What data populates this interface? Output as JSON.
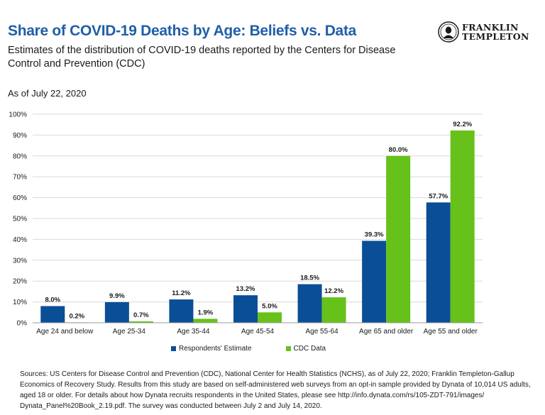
{
  "header": {
    "title": "Share of COVID-19 Deaths by Age: Beliefs vs. Data",
    "subtitle": "Estimates of the distribution of COVID-19 deaths reported by the Centers for Disease Control and Prevention (CDC)",
    "as_of": "As of July 22, 2020",
    "logo_line1": "FRANKLIN",
    "logo_line2": "TEMPLETON"
  },
  "colors": {
    "title": "#1f5fa8",
    "respondents": "#0a4e96",
    "cdc": "#66c21a",
    "grid": "#d9d9d9"
  },
  "chart_data": {
    "type": "bar",
    "categories": [
      "Age 24 and below",
      "Age 25-34",
      "Age 35-44",
      "Age 45-54",
      "Age 55-64",
      "Age 65 and older",
      "Age 55 and older"
    ],
    "series": [
      {
        "name": "Respondents' Estimate",
        "values": [
          8.0,
          9.9,
          11.2,
          13.2,
          18.5,
          39.3,
          57.7
        ],
        "labels": [
          "8.0%",
          "9.9%",
          "11.2%",
          "13.2%",
          "18.5%",
          "39.3%",
          "57.7%"
        ]
      },
      {
        "name": "CDC Data",
        "values": [
          0.2,
          0.7,
          1.9,
          5.0,
          12.2,
          80.0,
          92.2
        ],
        "labels": [
          "0.2%",
          "0.7%",
          "1.9%",
          "5.0%",
          "12.2%",
          "80.0%",
          "92.2%"
        ]
      }
    ],
    "ylim": [
      0,
      100
    ],
    "yticks": [
      "0%",
      "10%",
      "20%",
      "30%",
      "40%",
      "50%",
      "60%",
      "70%",
      "80%",
      "90%",
      "100%"
    ],
    "grid": true,
    "legend": "bottom"
  },
  "footer": {
    "sources": "Sources: US Centers for Disease Control and Prevention (CDC), National Center for Health Statistics (NCHS), as of July 22, 2020; Franklin Templeton-Gallup Economics of Recovery Study. Results from this study are based on self-administered web surveys from an opt-in sample provided by Dynata of 10,014 US adults, aged 18 or older. For details about how Dynata recruits respondents in the United States, please see http://info.dynata.com/rs/105-ZDT-791/images/ Dynata_Panel%20Book_2.19.pdf. The survey was conducted between July 2 and July 14, 2020."
  }
}
